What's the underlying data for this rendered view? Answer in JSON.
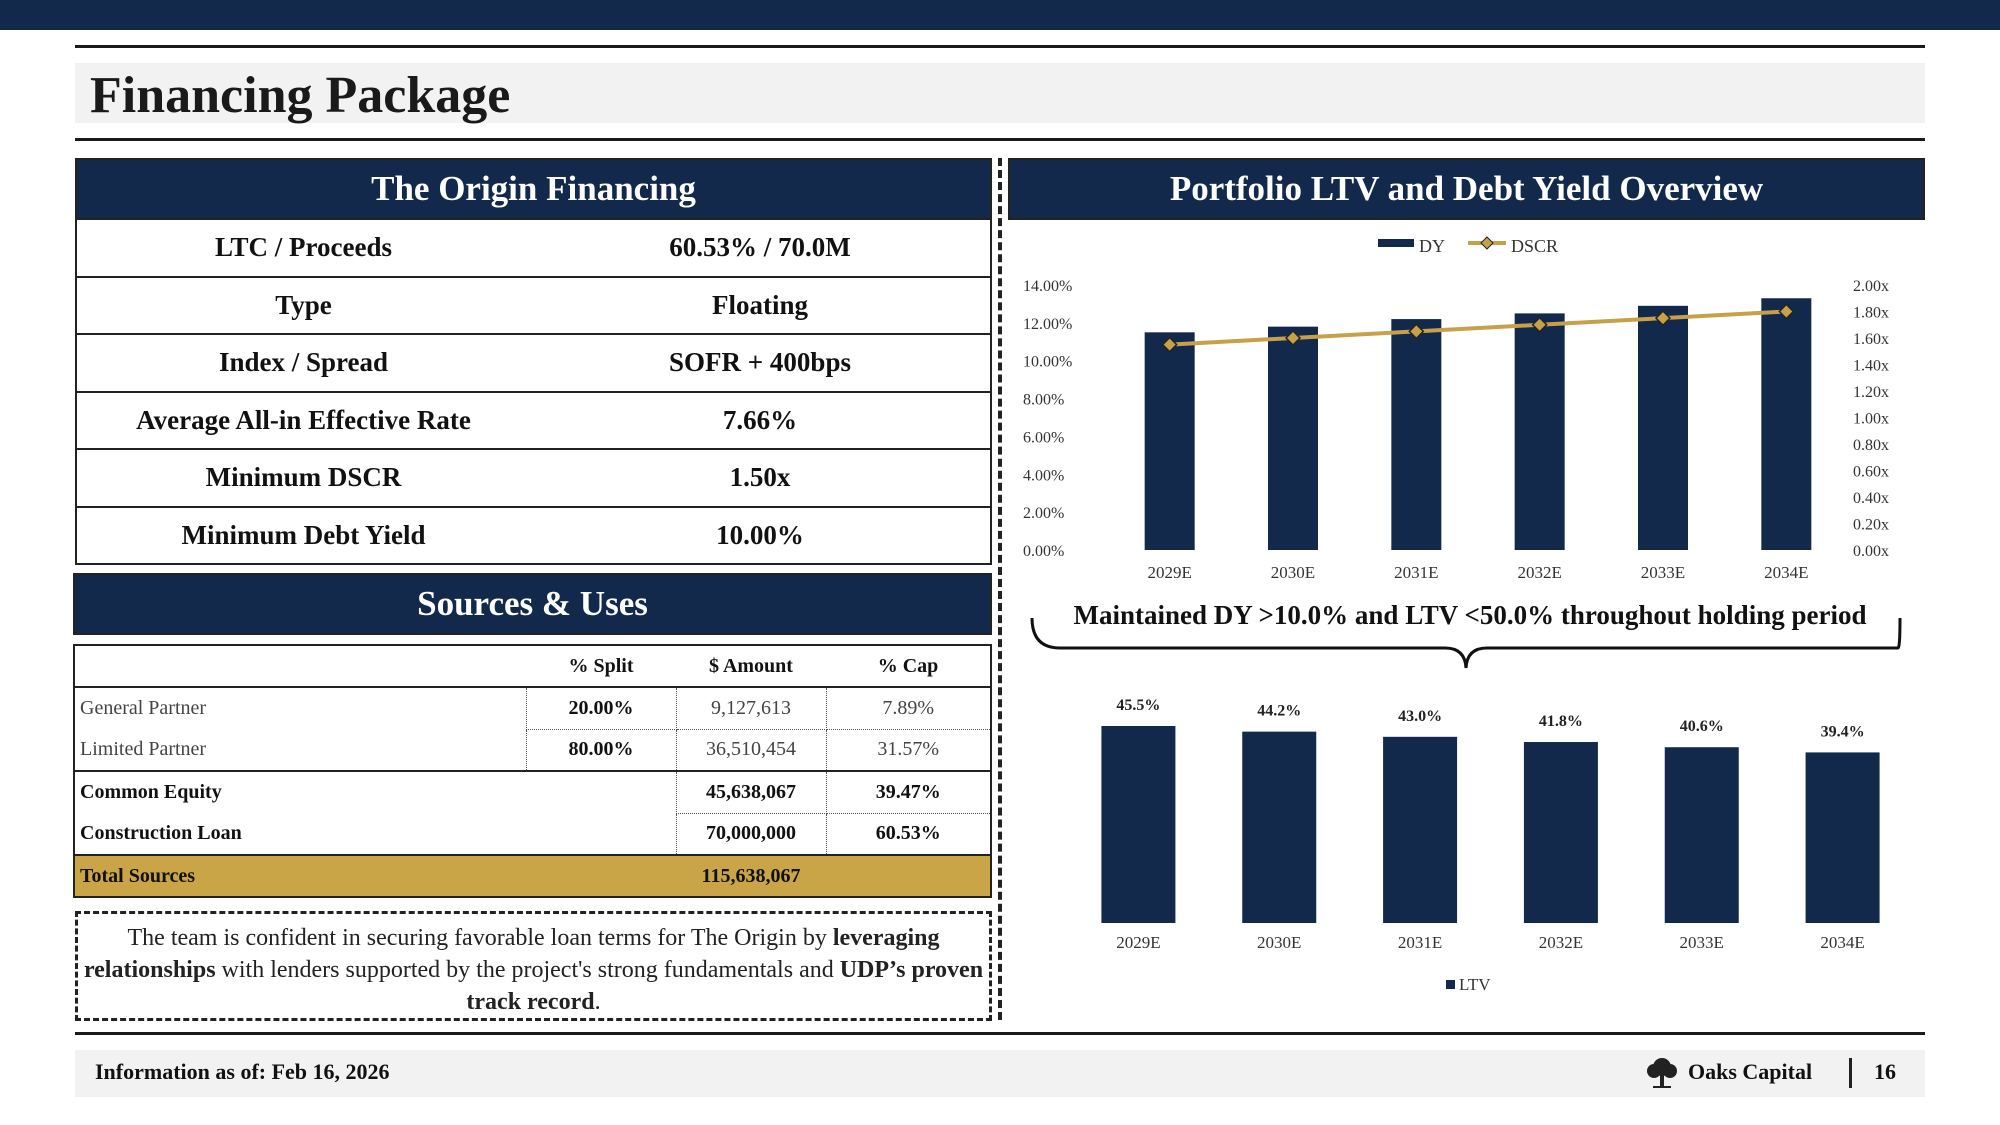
{
  "page": {
    "title": "Financing Package",
    "footer_info": "Information as of: Feb 16, 2026",
    "brand": "Oaks Capital",
    "page_number": "16"
  },
  "financing": {
    "header": "The Origin Financing",
    "rows": [
      {
        "label": "LTC / Proceeds",
        "value": "60.53% / 70.0M"
      },
      {
        "label": "Type",
        "value": "Floating"
      },
      {
        "label": "Index / Spread",
        "value": "SOFR + 400bps"
      },
      {
        "label": "Average All-in Effective Rate",
        "value": "7.66%"
      },
      {
        "label": "Minimum DSCR",
        "value": "1.50x"
      },
      {
        "label": "Minimum Debt Yield",
        "value": "10.00%"
      }
    ]
  },
  "sources": {
    "header": "Sources & Uses",
    "columns": [
      "% Split",
      "$ Amount",
      "% Cap"
    ],
    "rows": [
      {
        "label": "General Partner",
        "split": "20.00%",
        "amount": "9,127,613",
        "cap": "7.89%"
      },
      {
        "label": "Limited Partner",
        "split": "80.00%",
        "amount": "36,510,454",
        "cap": "31.57%"
      },
      {
        "label": "Common Equity",
        "split": "",
        "amount": "45,638,067",
        "cap": "39.47%"
      },
      {
        "label": "Construction Loan",
        "split": "",
        "amount": "70,000,000",
        "cap": "60.53%"
      },
      {
        "label": "Total Sources",
        "split": "",
        "amount": "115,638,067",
        "cap": ""
      }
    ]
  },
  "note": {
    "part1": "The team is confident in securing favorable loan terms for The Origin by ",
    "bold1": "leveraging relationships",
    "part2": " with lenders supported by the project's strong fundamentals and ",
    "bold2": "UDP’s proven track record",
    "part3": "."
  },
  "portfolio": {
    "header": "Portfolio LTV and Debt Yield Overview",
    "callout": "Maintained DY >10.0% and LTV <50.0% throughout holding period"
  },
  "colors": {
    "navy": "#13294b",
    "gold": "#c9a548",
    "gold_line": "#c8a04a"
  },
  "chart_data": [
    {
      "type": "bar",
      "categories": [
        "2029E",
        "2030E",
        "2031E",
        "2032E",
        "2033E",
        "2034E"
      ],
      "series": [
        {
          "name": "DY",
          "type": "bar",
          "axis": "left",
          "values": [
            11.5,
            11.8,
            12.2,
            12.5,
            12.9,
            13.3
          ]
        },
        {
          "name": "DSCR",
          "type": "line",
          "axis": "right",
          "values": [
            1.55,
            1.6,
            1.65,
            1.7,
            1.75,
            1.8
          ]
        }
      ],
      "y_left": {
        "min": 0,
        "max": 14,
        "ticks": [
          "0.00%",
          "2.00%",
          "4.00%",
          "6.00%",
          "8.00%",
          "10.00%",
          "12.00%",
          "14.00%"
        ]
      },
      "y_right": {
        "min": 0,
        "max": 2,
        "ticks": [
          "0.00x",
          "0.20x",
          "0.40x",
          "0.60x",
          "0.80x",
          "1.00x",
          "1.20x",
          "1.40x",
          "1.60x",
          "1.80x",
          "2.00x"
        ]
      },
      "legend": "top",
      "grid": false
    },
    {
      "type": "bar",
      "categories": [
        "2029E",
        "2030E",
        "2031E",
        "2032E",
        "2033E",
        "2034E"
      ],
      "series": [
        {
          "name": "LTV",
          "values": [
            45.5,
            44.2,
            43.0,
            41.8,
            40.6,
            39.4
          ],
          "labels": [
            "45.5%",
            "44.2%",
            "43.0%",
            "41.8%",
            "40.6%",
            "39.4%"
          ]
        }
      ],
      "legend": "bottom",
      "grid": false
    }
  ]
}
